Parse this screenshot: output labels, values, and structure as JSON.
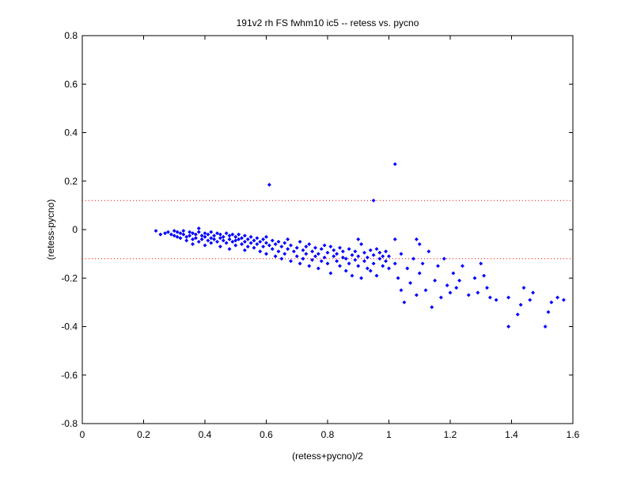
{
  "chart_data": {
    "type": "scatter",
    "title": "191v2 rh FS fwhm10 ic5 -- retess vs. pycno",
    "xlabel": "(retess+pycno)/2",
    "ylabel": "(retess-pycno)",
    "xlim": [
      0,
      1.6
    ],
    "ylim": [
      -0.8,
      0.8
    ],
    "xticks": [
      "0",
      "0.2",
      "0.4",
      "0.6",
      "0.8",
      "1",
      "1.2",
      "1.4",
      "1.6"
    ],
    "yticks": [
      "-0.8",
      "-0.6",
      "-0.4",
      "-0.2",
      "0",
      "0.2",
      "0.4",
      "0.6",
      "0.8"
    ],
    "grid": false,
    "marker_color": "#0000ff",
    "reference_line_color": "#ff0000",
    "reference_lines_y": [
      0.12,
      -0.12
    ],
    "points": [
      [
        0.24,
        -0.005
      ],
      [
        0.255,
        -0.02
      ],
      [
        0.27,
        -0.015
      ],
      [
        0.28,
        -0.01
      ],
      [
        0.29,
        -0.02
      ],
      [
        0.3,
        -0.005
      ],
      [
        0.3,
        -0.025
      ],
      [
        0.31,
        -0.01
      ],
      [
        0.31,
        -0.03
      ],
      [
        0.32,
        -0.015
      ],
      [
        0.32,
        -0.035
      ],
      [
        0.33,
        -0.02
      ],
      [
        0.33,
        -0.005
      ],
      [
        0.34,
        -0.03
      ],
      [
        0.34,
        -0.045
      ],
      [
        0.35,
        -0.01
      ],
      [
        0.35,
        -0.025
      ],
      [
        0.36,
        -0.015
      ],
      [
        0.36,
        -0.04
      ],
      [
        0.36,
        -0.06
      ],
      [
        0.37,
        -0.02
      ],
      [
        0.37,
        -0.035
      ],
      [
        0.38,
        -0.01
      ],
      [
        0.38,
        -0.05
      ],
      [
        0.38,
        0.005
      ],
      [
        0.39,
        -0.025
      ],
      [
        0.39,
        -0.04
      ],
      [
        0.4,
        -0.015
      ],
      [
        0.4,
        -0.03
      ],
      [
        0.4,
        -0.065
      ],
      [
        0.41,
        -0.02
      ],
      [
        0.41,
        -0.045
      ],
      [
        0.42,
        -0.01
      ],
      [
        0.42,
        -0.035
      ],
      [
        0.42,
        -0.055
      ],
      [
        0.43,
        -0.025
      ],
      [
        0.43,
        -0.04
      ],
      [
        0.44,
        -0.015
      ],
      [
        0.44,
        -0.05
      ],
      [
        0.45,
        -0.02
      ],
      [
        0.45,
        -0.035
      ],
      [
        0.45,
        -0.07
      ],
      [
        0.46,
        -0.03
      ],
      [
        0.46,
        -0.045
      ],
      [
        0.47,
        -0.015
      ],
      [
        0.47,
        -0.055
      ],
      [
        0.48,
        -0.025
      ],
      [
        0.48,
        -0.04
      ],
      [
        0.48,
        -0.08
      ],
      [
        0.49,
        -0.02
      ],
      [
        0.49,
        -0.05
      ],
      [
        0.5,
        -0.03
      ],
      [
        0.5,
        -0.045
      ],
      [
        0.5,
        -0.065
      ],
      [
        0.51,
        -0.02
      ],
      [
        0.51,
        -0.04
      ],
      [
        0.52,
        -0.035
      ],
      [
        0.52,
        -0.06
      ],
      [
        0.53,
        -0.025
      ],
      [
        0.53,
        -0.05
      ],
      [
        0.53,
        -0.085
      ],
      [
        0.54,
        -0.04
      ],
      [
        0.54,
        -0.07
      ],
      [
        0.55,
        -0.03
      ],
      [
        0.55,
        -0.055
      ],
      [
        0.56,
        -0.045
      ],
      [
        0.56,
        -0.075
      ],
      [
        0.57,
        -0.035
      ],
      [
        0.57,
        -0.06
      ],
      [
        0.58,
        -0.05
      ],
      [
        0.58,
        -0.09
      ],
      [
        0.59,
        -0.04
      ],
      [
        0.59,
        -0.07
      ],
      [
        0.6,
        -0.055
      ],
      [
        0.6,
        -0.03
      ],
      [
        0.6,
        -0.1
      ],
      [
        0.61,
        -0.065
      ],
      [
        0.62,
        -0.045
      ],
      [
        0.62,
        -0.08
      ],
      [
        0.63,
        -0.06
      ],
      [
        0.63,
        -0.11
      ],
      [
        0.64,
        -0.05
      ],
      [
        0.64,
        -0.09
      ],
      [
        0.65,
        -0.07
      ],
      [
        0.65,
        -0.12
      ],
      [
        0.66,
        -0.055
      ],
      [
        0.66,
        -0.1
      ],
      [
        0.67,
        -0.08
      ],
      [
        0.67,
        -0.04
      ],
      [
        0.68,
        -0.065
      ],
      [
        0.68,
        -0.13
      ],
      [
        0.69,
        -0.09
      ],
      [
        0.7,
        -0.075
      ],
      [
        0.7,
        -0.11
      ],
      [
        0.71,
        -0.05
      ],
      [
        0.71,
        -0.14
      ],
      [
        0.72,
        -0.085
      ],
      [
        0.72,
        -0.12
      ],
      [
        0.73,
        -0.07
      ],
      [
        0.73,
        -0.1
      ],
      [
        0.74,
        -0.06
      ],
      [
        0.74,
        -0.15
      ],
      [
        0.75,
        -0.09
      ],
      [
        0.75,
        -0.125
      ],
      [
        0.76,
        -0.075
      ],
      [
        0.76,
        -0.11
      ],
      [
        0.77,
        -0.1
      ],
      [
        0.77,
        -0.16
      ],
      [
        0.78,
        -0.08
      ],
      [
        0.78,
        -0.13
      ],
      [
        0.79,
        -0.065
      ],
      [
        0.79,
        -0.115
      ],
      [
        0.8,
        -0.095
      ],
      [
        0.8,
        -0.14
      ],
      [
        0.81,
        -0.07
      ],
      [
        0.81,
        -0.18
      ],
      [
        0.82,
        -0.11
      ],
      [
        0.82,
        -0.085
      ],
      [
        0.83,
        -0.13
      ],
      [
        0.83,
        -0.1
      ],
      [
        0.84,
        -0.075
      ],
      [
        0.84,
        -0.15
      ],
      [
        0.85,
        -0.115
      ],
      [
        0.85,
        -0.09
      ],
      [
        0.86,
        -0.17
      ],
      [
        0.86,
        -0.12
      ],
      [
        0.87,
        -0.08
      ],
      [
        0.87,
        -0.14
      ],
      [
        0.88,
        -0.105
      ],
      [
        0.88,
        -0.19
      ],
      [
        0.89,
        -0.125
      ],
      [
        0.89,
        -0.09
      ],
      [
        0.9,
        -0.15
      ],
      [
        0.9,
        -0.11
      ],
      [
        0.91,
        -0.06
      ],
      [
        0.91,
        -0.2
      ],
      [
        0.92,
        -0.13
      ],
      [
        0.92,
        -0.095
      ],
      [
        0.93,
        -0.16
      ],
      [
        0.93,
        -0.115
      ],
      [
        0.94,
        -0.085
      ],
      [
        0.94,
        -0.17
      ],
      [
        0.95,
        -0.14
      ],
      [
        0.95,
        -0.105
      ],
      [
        0.96,
        -0.08
      ],
      [
        0.96,
        -0.19
      ],
      [
        0.97,
        -0.12
      ],
      [
        0.97,
        -0.095
      ],
      [
        0.98,
        -0.15
      ],
      [
        0.98,
        -0.11
      ],
      [
        0.99,
        -0.09
      ],
      [
        0.99,
        -0.13
      ],
      [
        1.0,
        -0.11
      ],
      [
        1.0,
        -0.16
      ],
      [
        1.02,
        -0.14
      ],
      [
        1.03,
        -0.2
      ],
      [
        1.04,
        -0.1
      ],
      [
        1.04,
        -0.25
      ],
      [
        1.05,
        -0.3
      ],
      [
        1.06,
        -0.16
      ],
      [
        1.07,
        -0.22
      ],
      [
        1.08,
        -0.12
      ],
      [
        1.09,
        -0.27
      ],
      [
        1.1,
        -0.06
      ],
      [
        1.1,
        -0.18
      ],
      [
        1.11,
        -0.14
      ],
      [
        1.12,
        -0.25
      ],
      [
        1.13,
        -0.09
      ],
      [
        1.14,
        -0.32
      ],
      [
        1.15,
        -0.21
      ],
      [
        1.16,
        -0.15
      ],
      [
        1.17,
        -0.28
      ],
      [
        1.18,
        -0.12
      ],
      [
        1.19,
        -0.23
      ],
      [
        1.2,
        -0.26
      ],
      [
        1.21,
        -0.18
      ],
      [
        1.22,
        -0.24
      ],
      [
        1.23,
        -0.21
      ],
      [
        1.24,
        -0.15
      ],
      [
        1.26,
        -0.27
      ],
      [
        1.28,
        -0.2
      ],
      [
        1.29,
        -0.26
      ],
      [
        1.3,
        -0.14
      ],
      [
        1.31,
        -0.19
      ],
      [
        1.32,
        -0.24
      ],
      [
        1.33,
        -0.28
      ],
      [
        1.35,
        -0.29
      ],
      [
        1.39,
        -0.4
      ],
      [
        1.39,
        -0.28
      ],
      [
        1.42,
        -0.35
      ],
      [
        1.43,
        -0.31
      ],
      [
        1.44,
        -0.24
      ],
      [
        1.46,
        -0.29
      ],
      [
        1.47,
        -0.26
      ],
      [
        1.51,
        -0.4
      ],
      [
        1.52,
        -0.34
      ],
      [
        1.53,
        -0.3
      ],
      [
        1.55,
        -0.28
      ],
      [
        1.57,
        -0.29
      ],
      [
        0.61,
        0.185
      ],
      [
        0.95,
        0.12
      ],
      [
        1.02,
        0.27
      ],
      [
        1.02,
        -0.04
      ],
      [
        1.09,
        -0.04
      ],
      [
        0.9,
        -0.04
      ]
    ]
  }
}
